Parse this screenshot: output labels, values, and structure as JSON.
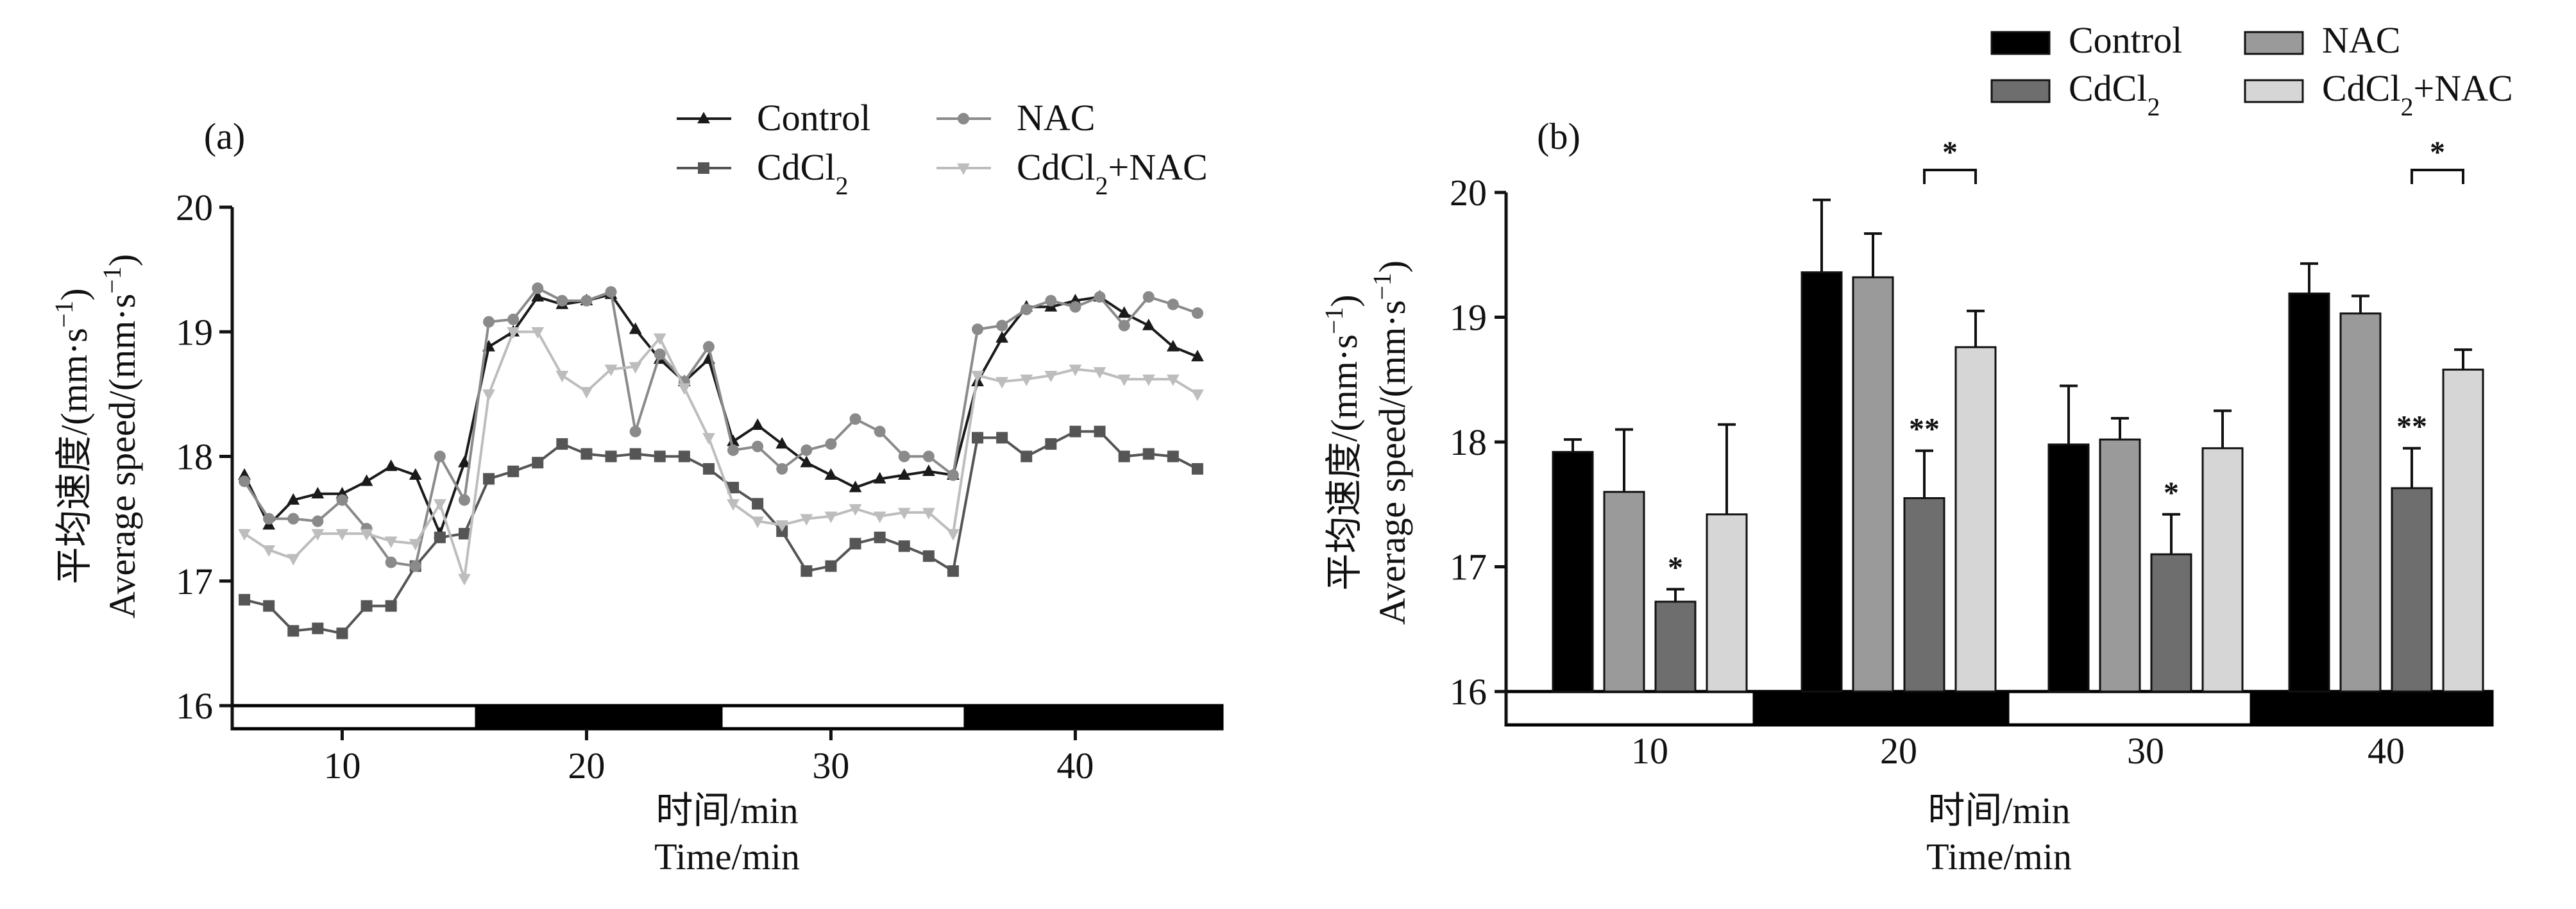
{
  "figure": {
    "panels": [
      "(a)",
      "(b)"
    ]
  },
  "chart_data": [
    {
      "type": "line",
      "panel_label": "(a)",
      "xlabel_cn": "时间/min",
      "xlabel_en": "Time/min",
      "ylabel_cn": "平均速度/(mm·s",
      "ylabel_en": "Average speed/(mm·s",
      "ylabel_sup": "−1",
      "ylabel_close": ")",
      "xlim": [
        5.5,
        46
      ],
      "ylim": [
        16,
        20
      ],
      "xticks": [
        10,
        20,
        30,
        40
      ],
      "yticks": [
        16,
        17,
        18,
        19,
        20
      ],
      "tick_labels_x": [
        "10",
        "20",
        "30",
        "40"
      ],
      "tick_labels_y": [
        "16",
        "17",
        "18",
        "19",
        "20"
      ],
      "grid": false,
      "legend_placement": "top-right",
      "light_dark_bar": [
        {
          "start": 5.5,
          "end": 15.5,
          "fill": "#ffffff"
        },
        {
          "start": 15.5,
          "end": 25.5,
          "fill": "#000000"
        },
        {
          "start": 25.5,
          "end": 35.5,
          "fill": "#ffffff"
        },
        {
          "start": 35.5,
          "end": 46,
          "fill": "#000000"
        }
      ],
      "x": [
        6,
        7,
        8,
        9,
        10,
        11,
        12,
        13,
        14,
        15,
        16,
        17,
        18,
        19,
        20,
        21,
        22,
        23,
        24,
        25,
        26,
        27,
        28,
        29,
        30,
        31,
        32,
        33,
        34,
        35,
        36,
        37,
        38,
        39,
        40,
        41,
        42,
        43,
        44,
        45
      ],
      "series": [
        {
          "name": "Control",
          "legend_text": "Control",
          "marker": "triangle-up",
          "color": "#1a1a1a",
          "values": [
            17.85,
            17.45,
            17.65,
            17.7,
            17.7,
            17.8,
            17.92,
            17.85,
            17.38,
            17.95,
            18.88,
            19.0,
            19.28,
            19.22,
            19.25,
            19.3,
            19.02,
            18.78,
            18.6,
            18.78,
            18.12,
            18.25,
            18.1,
            17.95,
            17.85,
            17.75,
            17.82,
            17.85,
            17.88,
            17.85,
            18.6,
            18.95,
            19.2,
            19.2,
            19.25,
            19.28,
            19.15,
            19.05,
            18.88,
            18.8
          ]
        },
        {
          "name": "CdCl2",
          "legend_text": "CdCl",
          "legend_sub": "2",
          "marker": "square",
          "color": "#555555",
          "values": [
            16.85,
            16.8,
            16.6,
            16.62,
            16.58,
            16.8,
            16.8,
            17.12,
            17.35,
            17.38,
            17.82,
            17.88,
            17.95,
            18.1,
            18.02,
            18.0,
            18.02,
            18.0,
            18.0,
            17.9,
            17.75,
            17.62,
            17.4,
            17.08,
            17.12,
            17.3,
            17.35,
            17.28,
            17.2,
            17.08,
            18.15,
            18.15,
            18.0,
            18.1,
            18.2,
            18.2,
            18.0,
            18.02,
            18.0,
            17.9
          ]
        },
        {
          "name": "NAC",
          "legend_text": "NAC",
          "marker": "circle",
          "color": "#8a8a8a",
          "values": [
            17.8,
            17.5,
            17.5,
            17.48,
            17.65,
            17.42,
            17.15,
            17.12,
            18.0,
            17.65,
            19.08,
            19.1,
            19.35,
            19.25,
            19.25,
            19.32,
            18.2,
            18.82,
            18.6,
            18.88,
            18.05,
            18.08,
            17.9,
            18.05,
            18.1,
            18.3,
            18.2,
            18.0,
            18.0,
            17.85,
            19.02,
            19.05,
            19.18,
            19.25,
            19.2,
            19.28,
            19.05,
            19.28,
            19.22,
            19.15
          ]
        },
        {
          "name": "CdCl2+NAC",
          "legend_text": "CdCl",
          "legend_sub": "2",
          "legend_suffix": "+NAC",
          "marker": "triangle-down",
          "color": "#bdbdbd",
          "values": [
            17.38,
            17.25,
            17.18,
            17.38,
            17.38,
            17.38,
            17.32,
            17.3,
            17.62,
            17.02,
            18.5,
            19.0,
            19.0,
            18.65,
            18.52,
            18.7,
            18.72,
            18.95,
            18.55,
            18.15,
            17.62,
            17.48,
            17.45,
            17.5,
            17.52,
            17.58,
            17.52,
            17.55,
            17.55,
            17.38,
            18.65,
            18.6,
            18.62,
            18.65,
            18.7,
            18.68,
            18.62,
            18.62,
            18.62,
            18.5
          ]
        }
      ]
    },
    {
      "type": "bar",
      "panel_label": "(b)",
      "xlabel_cn": "时间/min",
      "xlabel_en": "Time/min",
      "ylabel_cn": "平均速度/(mm·s",
      "ylabel_en": "Average speed/(mm·s",
      "ylabel_sup": "−1",
      "ylabel_close": ")",
      "ylim": [
        16,
        20
      ],
      "yticks": [
        16,
        17,
        18,
        19,
        20
      ],
      "tick_labels_y": [
        "16",
        "17",
        "18",
        "19",
        "20"
      ],
      "categories": [
        "10",
        "20",
        "30",
        "40"
      ],
      "grid": false,
      "legend_placement": "top-right",
      "light_dark_bar": [
        "#ffffff",
        "#000000",
        "#ffffff",
        "#000000"
      ],
      "series": [
        {
          "name": "Control",
          "legend_text": "Control",
          "color": "#000000",
          "values": [
            17.92,
            19.36,
            17.98,
            19.19
          ],
          "errors": [
            0.1,
            0.58,
            0.47,
            0.24
          ]
        },
        {
          "name": "NAC",
          "legend_text": "NAC",
          "color": "#9a9a9a",
          "values": [
            17.6,
            19.32,
            18.02,
            19.03
          ],
          "errors": [
            0.5,
            0.35,
            0.17,
            0.14
          ]
        },
        {
          "name": "CdCl2",
          "legend_text": "CdCl",
          "legend_sub": "2",
          "color": "#6e6e6e",
          "values": [
            16.72,
            17.55,
            17.1,
            17.63
          ],
          "errors": [
            0.1,
            0.38,
            0.32,
            0.32
          ]
        },
        {
          "name": "CdCl2+NAC",
          "legend_text": "CdCl",
          "legend_sub": "2",
          "legend_suffix": "+NAC",
          "color": "#d6d6d6",
          "values": [
            17.42,
            18.76,
            17.95,
            18.58
          ],
          "errors": [
            0.72,
            0.29,
            0.3,
            0.16
          ]
        }
      ],
      "significance": [
        {
          "category": 0,
          "series": 2,
          "label": "*"
        },
        {
          "category": 1,
          "series": 2,
          "label": "**"
        },
        {
          "category": 2,
          "series": 2,
          "label": "*"
        },
        {
          "category": 3,
          "series": 2,
          "label": "**"
        }
      ],
      "brackets": [
        {
          "category": 1,
          "from_series": 2,
          "to_series": 3,
          "label": "*"
        },
        {
          "category": 3,
          "from_series": 2,
          "to_series": 3,
          "label": "*"
        }
      ]
    }
  ]
}
